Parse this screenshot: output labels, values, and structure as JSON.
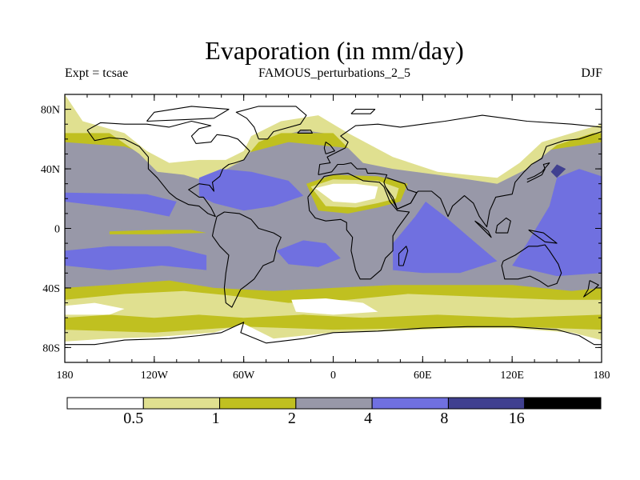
{
  "title": "Evaporation (in mm/day)",
  "experiment": "Expt = tcsae",
  "run": "FAMOUS_perturbations_2_5",
  "season": "DJF",
  "lat_ticks": [
    {
      "value": 80,
      "label": "80N"
    },
    {
      "value": 40,
      "label": "40N"
    },
    {
      "value": 0,
      "label": "0"
    },
    {
      "value": -40,
      "label": "40S"
    },
    {
      "value": -80,
      "label": "80S"
    }
  ],
  "lon_ticks": [
    {
      "value": -180,
      "label": "180"
    },
    {
      "value": -120,
      "label": "120W"
    },
    {
      "value": -60,
      "label": "60W"
    },
    {
      "value": 0,
      "label": "0"
    },
    {
      "value": 60,
      "label": "60E"
    },
    {
      "value": 120,
      "label": "120E"
    },
    {
      "value": 180,
      "label": "180"
    }
  ],
  "colorbar": {
    "colors": [
      "#ffffff",
      "#e0e090",
      "#c0c020",
      "#9898a8",
      "#7070e0",
      "#404090",
      "#000000"
    ],
    "levels": [
      "0.5",
      "1",
      "2",
      "4",
      "8",
      "16"
    ]
  },
  "colors": {
    "bg": "#9898a8",
    "trop": "#7070e0",
    "mid": "#c0c020",
    "low": "#e0e090",
    "none": "#ffffff",
    "deep": "#404090"
  }
}
